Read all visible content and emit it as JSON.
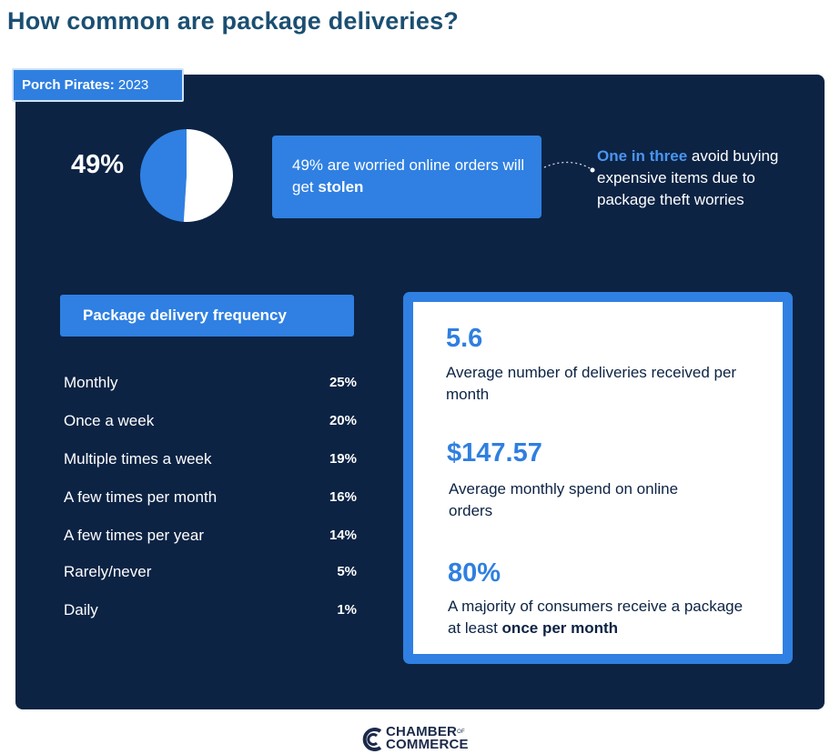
{
  "page": {
    "title": "How common are package deliveries?"
  },
  "tag": {
    "bold": "Porch Pirates:",
    "year": "2023"
  },
  "worried": {
    "percent_label": "49%",
    "text_prefix": "49% are worried online orders will get ",
    "text_bold": "stolen",
    "side_highlight": "One in three",
    "side_rest": "avoid buying expensive items due to package theft worries"
  },
  "frequency": {
    "header": "Package delivery frequency",
    "rows": [
      {
        "label": "Monthly",
        "value": "25%"
      },
      {
        "label": "Once a week",
        "value": "20%"
      },
      {
        "label": "Multiple times a week",
        "value": "19%"
      },
      {
        "label": "A few times per month",
        "value": "16%"
      },
      {
        "label": "A few times per year",
        "value": "14%"
      },
      {
        "label": "Rarely/never",
        "value": "5%"
      },
      {
        "label": "Daily",
        "value": "1%"
      }
    ]
  },
  "stats": [
    {
      "number": "5.6",
      "desc": "Average number of deliveries received per month"
    },
    {
      "number": "$147.57",
      "desc": "Average monthly spend on online orders"
    },
    {
      "number": "80%",
      "desc_prefix": "A majority of consumers receive a package at least ",
      "desc_bold": "once per month"
    }
  ],
  "logo": {
    "line1": "CHAMBER",
    "of": "OF",
    "line2": "COMMERCE"
  },
  "colors": {
    "navy": "#0c2344",
    "accent_blue": "#2f80e2",
    "title_blue": "#1b4f72",
    "white": "#ffffff"
  },
  "chart_data": [
    {
      "type": "pie",
      "title": "",
      "categories": [
        "Worried",
        ""
      ],
      "values": [
        49,
        51
      ],
      "colors": [
        "#2f80e2",
        "#ffffff"
      ],
      "data_label": "49%"
    },
    {
      "type": "table",
      "title": "Package delivery frequency",
      "categories": [
        "Monthly",
        "Once a week",
        "Multiple times a week",
        "A few times per month",
        "A few times per year",
        "Rarely/never",
        "Daily"
      ],
      "values": [
        25,
        20,
        19,
        16,
        14,
        5,
        1
      ],
      "unit": "%"
    }
  ]
}
